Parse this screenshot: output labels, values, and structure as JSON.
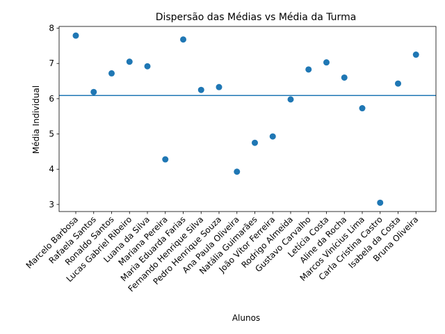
{
  "chart_data": {
    "type": "scatter",
    "title": "Dispersão das Médias vs Média da Turma",
    "xlabel": "Alunos",
    "ylabel": "Média Individual",
    "categories": [
      "Marcelo Barbosa",
      "Rafaela Santos",
      "Ronaldo Santos",
      "Lucas Gabriel Ribeiro",
      "Luana da Silva",
      "Mariana Pereira",
      "Maria Eduarda Farias",
      "Fernando Henrique Silva",
      "Pedro Henrique Souza",
      "Ana Paula Oliveira",
      "Natália Guimarães",
      "João Vítor Ferreira",
      "Rodrigo Almeida",
      "Gustavo Carvalho",
      "Letícia Costa",
      "Aline da Rocha",
      "Marcos Vinícius Lima",
      "Carla Cristina Castro",
      "Isabela da Costa",
      "Bruna Oliveira"
    ],
    "values": [
      7.79,
      6.19,
      6.72,
      7.05,
      6.92,
      4.28,
      7.68,
      6.25,
      6.33,
      3.93,
      4.75,
      4.93,
      5.98,
      6.83,
      7.03,
      6.6,
      5.73,
      3.05,
      6.43,
      7.25
    ],
    "mean_line": 6.09,
    "ylim": [
      2.8,
      8.05
    ],
    "yticks": [
      3,
      4,
      5,
      6,
      7,
      8
    ],
    "grid": false,
    "legend": "none",
    "colors": {
      "point": "#1f77b4",
      "line": "#1f77b4"
    }
  }
}
